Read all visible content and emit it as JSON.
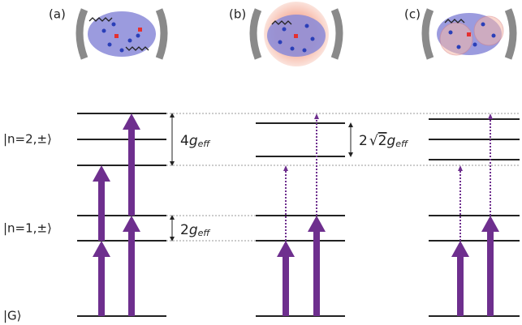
{
  "panels": [
    {
      "label": "(a)"
    },
    {
      "label": "(b)"
    },
    {
      "label": "(c)"
    }
  ],
  "levels": {
    "n2": "|n=2,±⟩",
    "n1": "|n=1,±⟩",
    "ground": "|G⟩"
  },
  "splittings": [
    {
      "prefix": "4",
      "symbol": "g",
      "subscript": "eff"
    },
    {
      "prefix": "2",
      "root": "2",
      "symbol": "g",
      "subscript": "eff"
    },
    {
      "prefix": "2",
      "symbol": "g",
      "subscript": "eff"
    }
  ]
}
